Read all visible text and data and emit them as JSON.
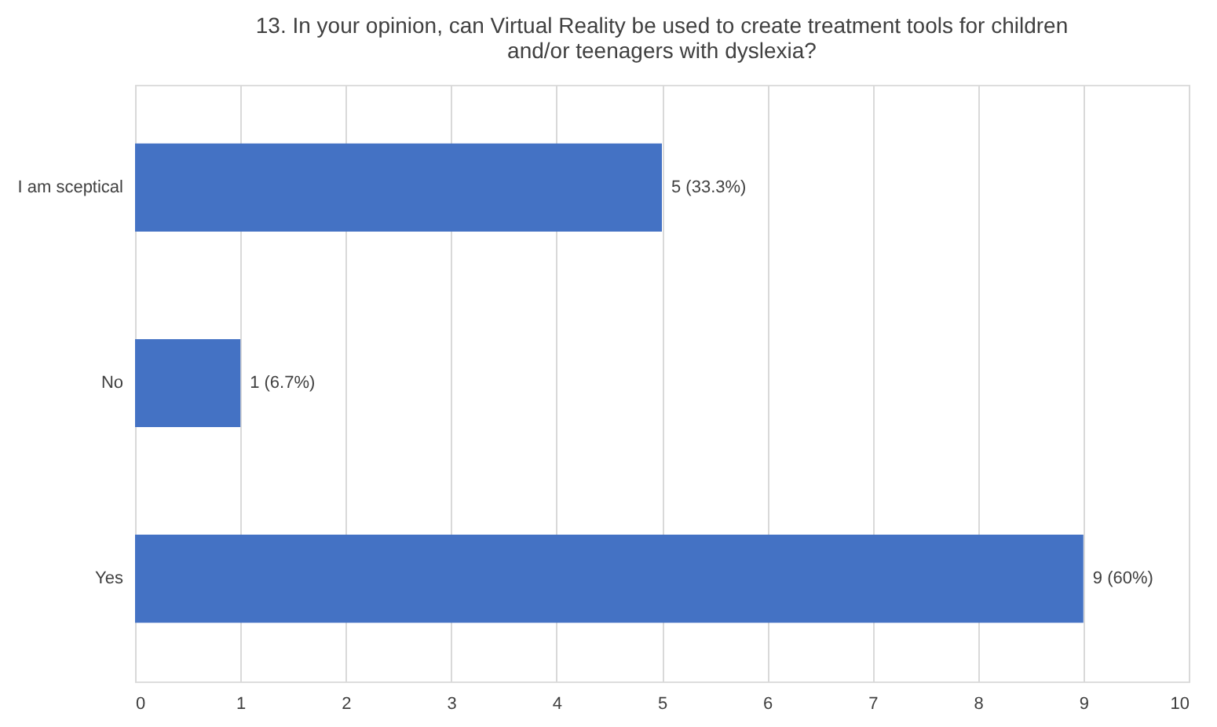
{
  "chart_data": {
    "type": "bar",
    "orientation": "horizontal",
    "title": [
      "13. In your opinion, can Virtual Reality be used to create treatment tools for children",
      "and/or teenagers with dyslexia?"
    ],
    "categories": [
      "I am sceptical",
      "No",
      "Yes"
    ],
    "values": [
      5,
      1,
      9
    ],
    "value_labels": [
      "5 (33.3%)",
      "1 (6.7%)",
      "9 (60%)"
    ],
    "color": "#4472c4",
    "xlim": [
      0,
      10
    ],
    "xticks": [
      0,
      1,
      2,
      3,
      4,
      5,
      6,
      7,
      8,
      9,
      10
    ],
    "grid": "x"
  }
}
